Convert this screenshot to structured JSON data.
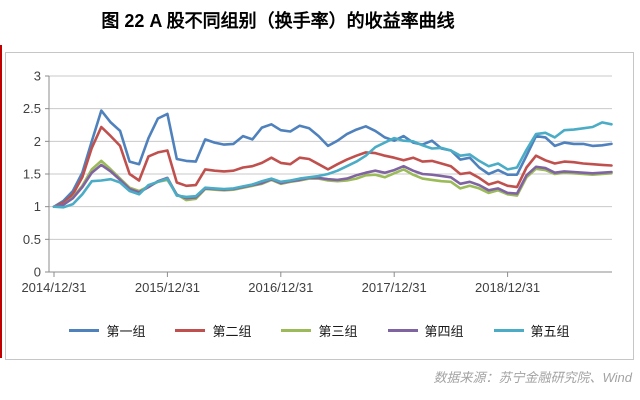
{
  "title": "图 22  A 股不同组别（换手率）的收益率曲线",
  "footer": {
    "source_text": "数据来源：苏宁金融研究院、Wind"
  },
  "colors": {
    "edge_line": "#c00000"
  },
  "chart_data": {
    "type": "line",
    "title": "图 22  A 股不同组别（换手率）的收益率曲线",
    "xlabel": "",
    "ylabel": "",
    "ylim": [
      0,
      3
    ],
    "y_ticks": [
      0,
      0.5,
      1,
      1.5,
      2,
      2.5,
      3
    ],
    "grid": true,
    "legend_position": "bottom",
    "x_unit": "monthly from 2014/12/31",
    "x_tick_labels": [
      "2014/12/31",
      "2015/12/31",
      "2016/12/31",
      "2017/12/31",
      "2018/12/31"
    ],
    "x_tick_indices": [
      0,
      12,
      24,
      36,
      48
    ],
    "series": [
      {
        "name": "第一组",
        "color": "#4F81BD",
        "values": [
          1.0,
          1.09,
          1.24,
          1.52,
          2.0,
          2.47,
          2.29,
          2.16,
          1.69,
          1.65,
          2.05,
          2.35,
          2.42,
          1.73,
          1.7,
          1.69,
          2.03,
          1.98,
          1.95,
          1.96,
          2.08,
          2.03,
          2.21,
          2.26,
          2.17,
          2.15,
          2.24,
          2.2,
          2.08,
          1.93,
          2.01,
          2.11,
          2.18,
          2.23,
          2.16,
          2.06,
          2.01,
          2.08,
          1.98,
          1.95,
          2.01,
          1.89,
          1.86,
          1.72,
          1.75,
          1.6,
          1.5,
          1.56,
          1.49,
          1.49,
          1.78,
          2.08,
          2.06,
          1.93,
          1.98,
          1.96,
          1.96,
          1.93,
          1.94,
          1.96
        ]
      },
      {
        "name": "第二组",
        "color": "#C0504D",
        "values": [
          1.0,
          1.06,
          1.19,
          1.45,
          1.9,
          2.22,
          2.08,
          1.93,
          1.5,
          1.4,
          1.77,
          1.83,
          1.86,
          1.37,
          1.32,
          1.33,
          1.57,
          1.55,
          1.54,
          1.55,
          1.6,
          1.62,
          1.67,
          1.75,
          1.67,
          1.65,
          1.75,
          1.73,
          1.65,
          1.57,
          1.65,
          1.72,
          1.78,
          1.83,
          1.82,
          1.78,
          1.75,
          1.71,
          1.75,
          1.69,
          1.7,
          1.66,
          1.62,
          1.5,
          1.52,
          1.44,
          1.34,
          1.38,
          1.32,
          1.3,
          1.6,
          1.78,
          1.71,
          1.66,
          1.69,
          1.68,
          1.66,
          1.65,
          1.64,
          1.63
        ]
      },
      {
        "name": "第三组",
        "color": "#9BBB59",
        "values": [
          1.0,
          1.03,
          1.14,
          1.32,
          1.57,
          1.7,
          1.57,
          1.43,
          1.29,
          1.24,
          1.31,
          1.38,
          1.41,
          1.19,
          1.1,
          1.12,
          1.27,
          1.26,
          1.25,
          1.26,
          1.29,
          1.32,
          1.35,
          1.41,
          1.35,
          1.38,
          1.4,
          1.43,
          1.43,
          1.4,
          1.39,
          1.4,
          1.43,
          1.48,
          1.49,
          1.45,
          1.51,
          1.57,
          1.49,
          1.43,
          1.41,
          1.39,
          1.38,
          1.28,
          1.32,
          1.28,
          1.21,
          1.25,
          1.19,
          1.17,
          1.45,
          1.58,
          1.56,
          1.5,
          1.52,
          1.51,
          1.5,
          1.49,
          1.5,
          1.51
        ]
      },
      {
        "name": "第四组",
        "color": "#8064A2",
        "values": [
          1.0,
          1.03,
          1.13,
          1.3,
          1.52,
          1.64,
          1.54,
          1.41,
          1.27,
          1.22,
          1.3,
          1.39,
          1.44,
          1.18,
          1.13,
          1.14,
          1.28,
          1.27,
          1.26,
          1.27,
          1.3,
          1.33,
          1.36,
          1.42,
          1.36,
          1.39,
          1.41,
          1.44,
          1.44,
          1.42,
          1.41,
          1.43,
          1.48,
          1.52,
          1.55,
          1.52,
          1.56,
          1.62,
          1.55,
          1.5,
          1.49,
          1.47,
          1.45,
          1.35,
          1.38,
          1.33,
          1.25,
          1.28,
          1.21,
          1.2,
          1.48,
          1.61,
          1.59,
          1.52,
          1.54,
          1.53,
          1.52,
          1.51,
          1.52,
          1.53
        ]
      },
      {
        "name": "第五组",
        "color": "#4BACC6",
        "values": [
          1.0,
          0.99,
          1.04,
          1.19,
          1.39,
          1.4,
          1.42,
          1.37,
          1.24,
          1.19,
          1.33,
          1.38,
          1.43,
          1.17,
          1.15,
          1.16,
          1.29,
          1.28,
          1.27,
          1.28,
          1.31,
          1.34,
          1.39,
          1.43,
          1.38,
          1.4,
          1.43,
          1.45,
          1.47,
          1.5,
          1.55,
          1.62,
          1.69,
          1.78,
          1.91,
          1.98,
          2.05,
          2.01,
          2.0,
          1.94,
          1.89,
          1.9,
          1.86,
          1.78,
          1.8,
          1.7,
          1.62,
          1.66,
          1.57,
          1.6,
          1.87,
          2.11,
          2.13,
          2.06,
          2.17,
          2.18,
          2.2,
          2.22,
          2.29,
          2.26
        ]
      }
    ]
  }
}
